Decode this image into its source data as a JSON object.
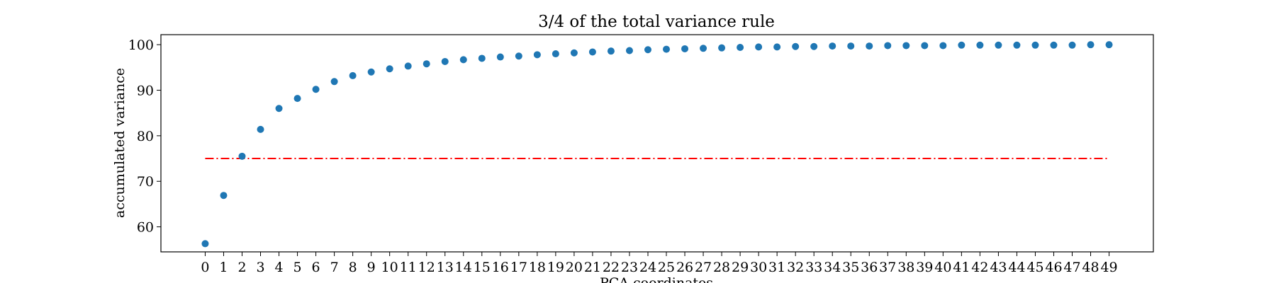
{
  "chart_data": {
    "type": "scatter",
    "title": "3/4 of the total variance rule",
    "xlabel": "PCA coordinates",
    "ylabel": "accumulated variance",
    "xlim": [
      -2.4,
      51.4
    ],
    "ylim": [
      54.5,
      102.2
    ],
    "xticks": [
      0,
      1,
      2,
      3,
      4,
      5,
      6,
      7,
      8,
      9,
      10,
      11,
      12,
      13,
      14,
      15,
      16,
      17,
      18,
      19,
      20,
      21,
      22,
      23,
      24,
      25,
      26,
      27,
      28,
      29,
      30,
      31,
      32,
      33,
      34,
      35,
      36,
      37,
      38,
      39,
      40,
      41,
      42,
      43,
      44,
      45,
      46,
      47,
      48,
      49
    ],
    "yticks": [
      60,
      70,
      80,
      90,
      100
    ],
    "grid": false,
    "series": [
      {
        "marker": "circle",
        "color": "#1f77b4",
        "x": [
          0,
          1,
          2,
          3,
          4,
          5,
          6,
          7,
          8,
          9,
          10,
          11,
          12,
          13,
          14,
          15,
          16,
          17,
          18,
          19,
          20,
          21,
          22,
          23,
          24,
          25,
          26,
          27,
          28,
          29,
          30,
          31,
          32,
          33,
          34,
          35,
          36,
          37,
          38,
          39,
          40,
          41,
          42,
          43,
          44,
          45,
          46,
          47,
          48,
          49
        ],
        "y": [
          56.3,
          66.9,
          75.5,
          81.4,
          86.0,
          88.2,
          90.2,
          91.9,
          93.2,
          94.0,
          94.7,
          95.3,
          95.8,
          96.3,
          96.7,
          97.0,
          97.3,
          97.5,
          97.8,
          98.0,
          98.2,
          98.4,
          98.6,
          98.7,
          98.9,
          99.0,
          99.1,
          99.2,
          99.3,
          99.4,
          99.5,
          99.5,
          99.6,
          99.6,
          99.7,
          99.7,
          99.7,
          99.8,
          99.8,
          99.8,
          99.8,
          99.9,
          99.9,
          99.9,
          99.9,
          99.9,
          99.9,
          99.9,
          100.0,
          100.0
        ]
      }
    ],
    "reference_line": {
      "y": 75,
      "x_start": 0,
      "x_end": 49,
      "color": "#ff0000",
      "style": "dashdot"
    }
  }
}
